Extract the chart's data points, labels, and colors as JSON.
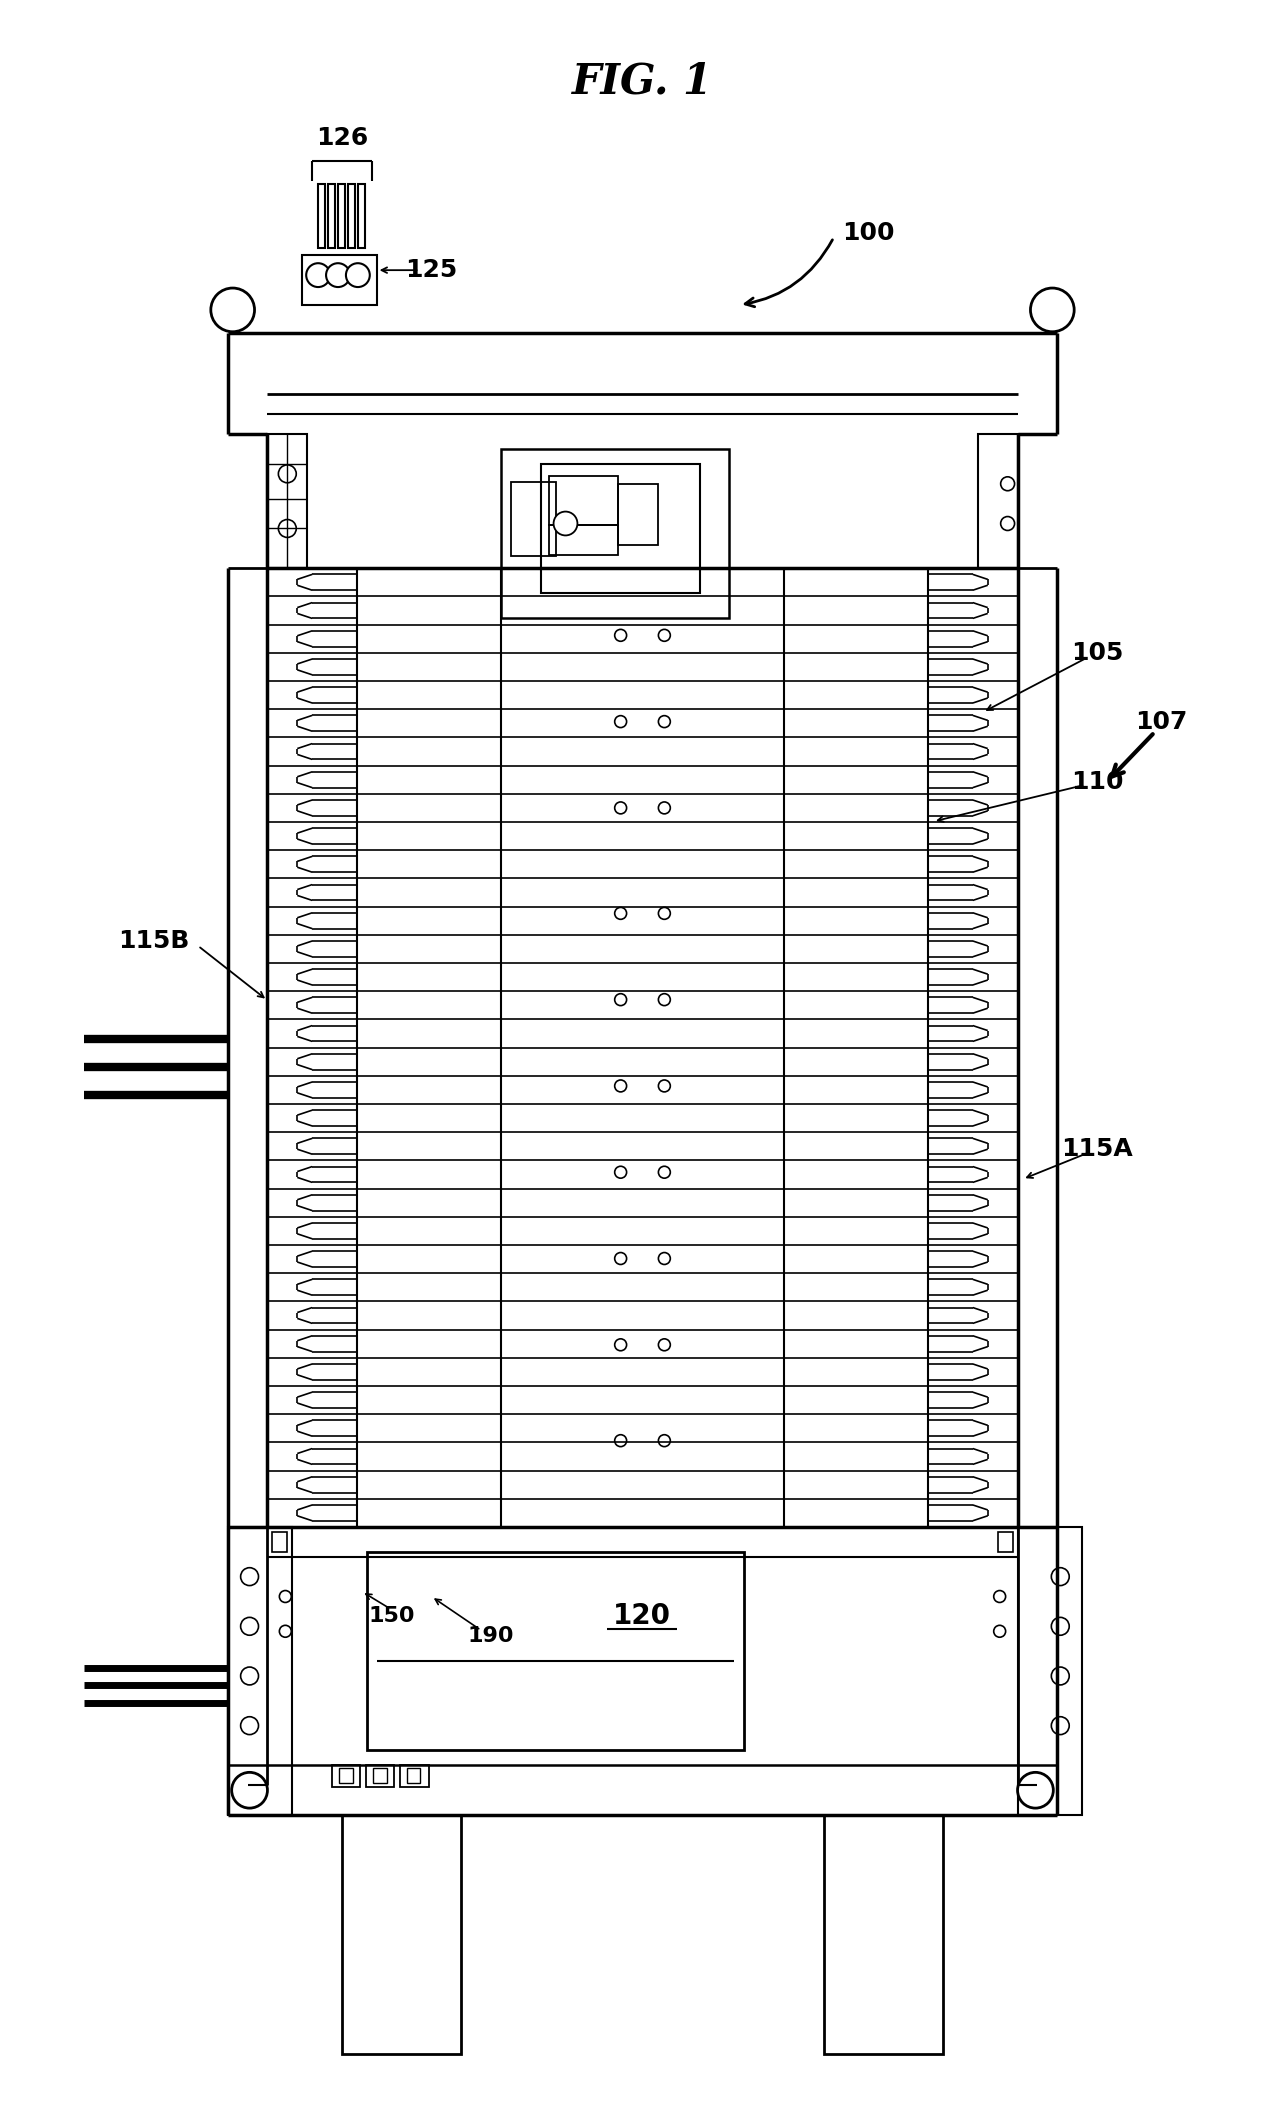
{
  "title": "FIG. 1",
  "bg_color": "#ffffff",
  "line_color": "#000000",
  "figsize": [
    12.85,
    21.21
  ],
  "dpi": 100
}
